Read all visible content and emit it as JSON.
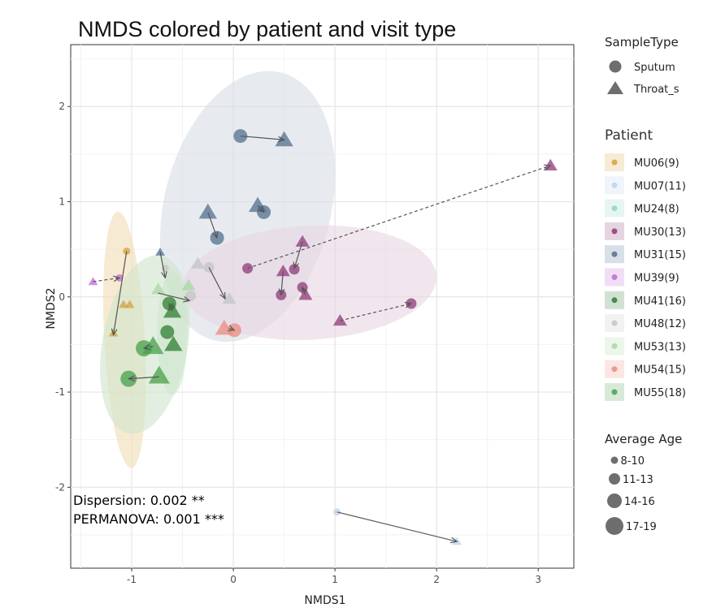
{
  "chart_data": {
    "type": "scatter",
    "title": "NMDS colored by patient and visit type",
    "xlabel": "NMDS1",
    "ylabel": "NMDS2",
    "xlim": [
      -1.6,
      3.35
    ],
    "ylim": [
      -2.85,
      2.65
    ],
    "x_ticks": [
      -1,
      0,
      1,
      2,
      3
    ],
    "y_ticks": [
      -2,
      -1,
      0,
      1,
      2
    ],
    "x_tick_labels": [
      "-1",
      "0",
      "1",
      "2",
      "3"
    ],
    "y_tick_labels": [
      "-2",
      "-1",
      "0",
      "1",
      "2"
    ],
    "grid": true,
    "legend_position": "right",
    "annotations": [
      "Dispersion: 0.002 **",
      "PERMANOVA: 0.001 ***"
    ],
    "legend": {
      "sample_type_title": "SampleType",
      "sample_types": [
        {
          "label": "Sputum",
          "shape": "circle"
        },
        {
          "label": "Throat_s",
          "shape": "triangle"
        }
      ],
      "patient_title": "Patient",
      "patients": [
        {
          "label": "MU06(9)",
          "color": "#d4a23c"
        },
        {
          "label": "MU07(11)",
          "color": "#b9d3ee"
        },
        {
          "label": "MU24(8)",
          "color": "#8fd3c8"
        },
        {
          "label": "MU30(13)",
          "color": "#8f3a78"
        },
        {
          "label": "MU31(15)",
          "color": "#536f8f"
        },
        {
          "label": "MU39(9)",
          "color": "#c06ad8"
        },
        {
          "label": "MU41(16)",
          "color": "#2f7d32"
        },
        {
          "label": "MU48(12)",
          "color": "#c4c4c4"
        },
        {
          "label": "MU53(13)",
          "color": "#a8d8a0"
        },
        {
          "label": "MU54(15)",
          "color": "#e98b80"
        },
        {
          "label": "MU55(18)",
          "color": "#47a04b"
        }
      ],
      "age_title": "Average Age",
      "age_groups": [
        {
          "label": "8-10",
          "size": 1
        },
        {
          "label": "11-13",
          "size": 2
        },
        {
          "label": "14-16",
          "size": 3
        },
        {
          "label": "17-19",
          "size": 4
        }
      ]
    },
    "ellipses": [
      {
        "patient": "MU06(9)",
        "cx": -1.07,
        "cy": -0.45,
        "rx": 0.2,
        "ry": 1.35,
        "angle": -3,
        "color": "#f2dcb4"
      },
      {
        "patient": "MU31(15)",
        "cx": 0.14,
        "cy": 0.95,
        "rx": 0.82,
        "ry": 1.45,
        "angle": 14,
        "color": "#d7dde5"
      },
      {
        "patient": "MU30(13)",
        "cx": 0.75,
        "cy": 0.15,
        "rx": 1.25,
        "ry": 0.6,
        "angle": -3,
        "color": "#e8d5e2"
      },
      {
        "patient": "MU55(18)",
        "cx": -0.87,
        "cy": -0.5,
        "rx": 0.42,
        "ry": 0.95,
        "angle": 10,
        "color": "#cfe5cc"
      },
      {
        "patient": "MU41(16)",
        "cx": -0.6,
        "cy": -0.38,
        "rx": 0.15,
        "ry": 0.65,
        "angle": 0,
        "color": "#cfe5cc"
      }
    ],
    "points": [
      {
        "patient": "MU06(9)",
        "shape": "circle",
        "x": -1.05,
        "y": 0.48,
        "age": 1
      },
      {
        "patient": "MU06(9)",
        "shape": "triangle",
        "x": -1.18,
        "y": -0.38,
        "age": 1
      },
      {
        "patient": "MU06(9)",
        "shape": "triangle",
        "x": -1.08,
        "y": -0.08,
        "age": 1
      },
      {
        "patient": "MU06(9)",
        "shape": "triangle",
        "x": -1.02,
        "y": -0.08,
        "age": 1
      },
      {
        "patient": "MU07(11)",
        "shape": "circle",
        "x": 1.02,
        "y": -2.26,
        "age": 1
      },
      {
        "patient": "MU07(11)",
        "shape": "triangle",
        "x": 2.2,
        "y": -2.57,
        "age": 1
      },
      {
        "patient": "MU30(13)",
        "shape": "triangle",
        "x": 3.12,
        "y": 1.38,
        "age": 2
      },
      {
        "patient": "MU30(13)",
        "shape": "circle",
        "x": 0.14,
        "y": 0.3,
        "age": 2
      },
      {
        "patient": "MU30(13)",
        "shape": "triangle",
        "x": 0.68,
        "y": 0.58,
        "age": 2
      },
      {
        "patient": "MU30(13)",
        "shape": "circle",
        "x": 0.6,
        "y": 0.29,
        "age": 2
      },
      {
        "patient": "MU30(13)",
        "shape": "triangle",
        "x": 0.49,
        "y": 0.27,
        "age": 2
      },
      {
        "patient": "MU30(13)",
        "shape": "circle",
        "x": 0.47,
        "y": 0.02,
        "age": 2
      },
      {
        "patient": "MU30(13)",
        "shape": "circle",
        "x": 0.68,
        "y": 0.1,
        "age": 2
      },
      {
        "patient": "MU30(13)",
        "shape": "triangle",
        "x": 0.71,
        "y": 0.02,
        "age": 2
      },
      {
        "patient": "MU30(13)",
        "shape": "triangle",
        "x": 1.05,
        "y": -0.25,
        "age": 2
      },
      {
        "patient": "MU30(13)",
        "shape": "circle",
        "x": 1.75,
        "y": -0.07,
        "age": 2
      },
      {
        "patient": "MU31(15)",
        "shape": "circle",
        "x": 0.07,
        "y": 1.69,
        "age": 3
      },
      {
        "patient": "MU31(15)",
        "shape": "triangle",
        "x": 0.5,
        "y": 1.65,
        "age": 3
      },
      {
        "patient": "MU31(15)",
        "shape": "triangle",
        "x": -0.25,
        "y": 0.89,
        "age": 3
      },
      {
        "patient": "MU31(15)",
        "shape": "triangle",
        "x": 0.24,
        "y": 0.96,
        "age": 3
      },
      {
        "patient": "MU31(15)",
        "shape": "circle",
        "x": 0.3,
        "y": 0.89,
        "age": 3
      },
      {
        "patient": "MU31(15)",
        "shape": "circle",
        "x": -0.16,
        "y": 0.62,
        "age": 3
      },
      {
        "patient": "MU31(15)",
        "shape": "triangle",
        "x": -0.72,
        "y": 0.47,
        "age": 1
      },
      {
        "patient": "MU39(9)",
        "shape": "triangle",
        "x": -1.38,
        "y": 0.16,
        "age": 1
      },
      {
        "patient": "MU39(9)",
        "shape": "circle",
        "x": -1.12,
        "y": 0.2,
        "age": 1
      },
      {
        "patient": "MU48(12)",
        "shape": "triangle",
        "x": -0.35,
        "y": 0.35,
        "age": 2
      },
      {
        "patient": "MU48(12)",
        "shape": "circle",
        "x": -0.24,
        "y": 0.31,
        "age": 2
      },
      {
        "patient": "MU48(12)",
        "shape": "circle",
        "x": -0.42,
        "y": 0.01,
        "age": 2
      },
      {
        "patient": "MU48(12)",
        "shape": "triangle",
        "x": -0.04,
        "y": -0.02,
        "age": 2
      },
      {
        "patient": "MU48(12)",
        "shape": "circle",
        "x": -0.67,
        "y": 0.3,
        "age": 1
      },
      {
        "patient": "MU53(13)",
        "shape": "triangle",
        "x": -0.74,
        "y": 0.08,
        "age": 2
      },
      {
        "patient": "MU53(13)",
        "shape": "triangle",
        "x": -0.44,
        "y": 0.12,
        "age": 2
      },
      {
        "patient": "MU54(15)",
        "shape": "triangle",
        "x": -0.09,
        "y": -0.33,
        "age": 3
      },
      {
        "patient": "MU54(15)",
        "shape": "circle",
        "x": 0.01,
        "y": -0.35,
        "age": 3
      },
      {
        "patient": "MU41(16)",
        "shape": "circle",
        "x": -0.63,
        "y": -0.07,
        "age": 3
      },
      {
        "patient": "MU41(16)",
        "shape": "triangle",
        "x": -0.6,
        "y": -0.15,
        "age": 3
      },
      {
        "patient": "MU41(16)",
        "shape": "circle",
        "x": -0.65,
        "y": -0.37,
        "age": 3
      },
      {
        "patient": "MU41(16)",
        "shape": "triangle",
        "x": -0.59,
        "y": -0.5,
        "age": 3
      },
      {
        "patient": "MU55(18)",
        "shape": "circle",
        "x": -0.88,
        "y": -0.54,
        "age": 4
      },
      {
        "patient": "MU55(18)",
        "shape": "triangle",
        "x": -0.79,
        "y": -0.52,
        "age": 4
      },
      {
        "patient": "MU55(18)",
        "shape": "circle",
        "x": -1.03,
        "y": -0.86,
        "age": 4
      },
      {
        "patient": "MU55(18)",
        "shape": "triangle",
        "x": -0.73,
        "y": -0.83,
        "age": 4
      }
    ],
    "arrows": [
      {
        "from": [
          -1.05,
          0.48
        ],
        "to": [
          -1.18,
          -0.4
        ],
        "dashed": false
      },
      {
        "from": [
          -1.38,
          0.16
        ],
        "to": [
          -1.12,
          0.2
        ],
        "dashed": true
      },
      {
        "from": [
          0.07,
          1.69
        ],
        "to": [
          0.5,
          1.65
        ],
        "dashed": false
      },
      {
        "from": [
          -0.25,
          0.89
        ],
        "to": [
          -0.16,
          0.62
        ],
        "dashed": false
      },
      {
        "from": [
          0.24,
          0.96
        ],
        "to": [
          0.3,
          0.89
        ],
        "dashed": false
      },
      {
        "from": [
          -0.72,
          0.47
        ],
        "to": [
          -0.67,
          0.2
        ],
        "dashed": false
      },
      {
        "from": [
          1.05,
          -0.25
        ],
        "to": [
          1.75,
          -0.07
        ],
        "dashed": true
      },
      {
        "from": [
          0.14,
          0.3
        ],
        "to": [
          3.12,
          1.38
        ],
        "dashed": true
      },
      {
        "from": [
          0.68,
          0.58
        ],
        "to": [
          0.6,
          0.3
        ],
        "dashed": false
      },
      {
        "from": [
          0.49,
          0.27
        ],
        "to": [
          0.47,
          0.02
        ],
        "dashed": false
      },
      {
        "from": [
          0.71,
          0.02
        ],
        "to": [
          0.68,
          0.1
        ],
        "dashed": false
      },
      {
        "from": [
          -0.24,
          0.31
        ],
        "to": [
          -0.08,
          -0.02
        ],
        "dashed": false
      },
      {
        "from": [
          -0.74,
          0.04
        ],
        "to": [
          -0.43,
          -0.04
        ],
        "dashed": false
      },
      {
        "from": [
          -0.04,
          -0.33
        ],
        "to": [
          0.01,
          -0.35
        ],
        "dashed": true
      },
      {
        "from": [
          -0.79,
          -0.52
        ],
        "to": [
          -0.88,
          -0.54
        ],
        "dashed": true
      },
      {
        "from": [
          -0.73,
          -0.84
        ],
        "to": [
          -1.03,
          -0.86
        ],
        "dashed": false
      },
      {
        "from": [
          -0.6,
          -0.15
        ],
        "to": [
          -0.63,
          -0.07
        ],
        "dashed": false
      },
      {
        "from": [
          1.02,
          -2.26
        ],
        "to": [
          2.2,
          -2.57
        ],
        "dashed": false
      }
    ]
  }
}
